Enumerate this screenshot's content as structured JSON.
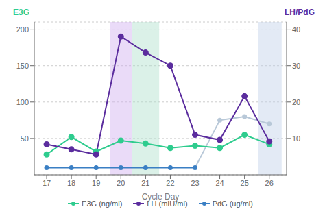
{
  "chart_data": {
    "type": "line",
    "xlabel": "Cycle Day",
    "ylabel": "E3G",
    "y2label": "LH/PdG",
    "x": [
      17,
      18,
      19,
      20,
      21,
      22,
      23,
      24,
      25,
      26
    ],
    "xlim": [
      16.5,
      26.7
    ],
    "xticks": [
      17,
      18,
      19,
      20,
      21,
      22,
      23,
      24,
      25,
      26
    ],
    "ylim": [
      0,
      210
    ],
    "yticks": [
      50,
      100,
      150,
      200
    ],
    "y2lim": [
      0,
      42
    ],
    "y2ticks": [
      10,
      20,
      30,
      40
    ],
    "grid": true,
    "legend": "bottom",
    "series": [
      {
        "name": "E3G (ng/ml)",
        "color": "#2ecc8e",
        "values": [
          28,
          52,
          32,
          47,
          43,
          37,
          40,
          37,
          55,
          42
        ]
      },
      {
        "name": "LH (mIU/ml)",
        "color": "#5b2d9e",
        "values": [
          42,
          35,
          28,
          190,
          168,
          150,
          55,
          48,
          108,
          46
        ]
      },
      {
        "name": "PdG (ug/ml)",
        "color": "#3a7fc4",
        "axis": "y2",
        "colors": [
          "#3a7fc4",
          "#3a7fc4",
          "#3a7fc4",
          "#3a7fc4",
          "#3a7fc4",
          "#3a7fc4",
          "#3a7fc4",
          "#b8c8d8",
          "#b8c8d8",
          "#b8c8d8"
        ],
        "values": [
          2,
          2,
          2,
          2,
          2,
          2,
          2,
          15,
          16,
          14
        ]
      }
    ],
    "bands": [
      {
        "x": [
          19.55,
          20.45
        ],
        "color": "#d0b0f0"
      },
      {
        "x": [
          20.45,
          21.55
        ],
        "color": "#b0e0cc"
      },
      {
        "x": [
          25.55,
          26.5
        ],
        "color": "#c0d0e8"
      }
    ]
  }
}
